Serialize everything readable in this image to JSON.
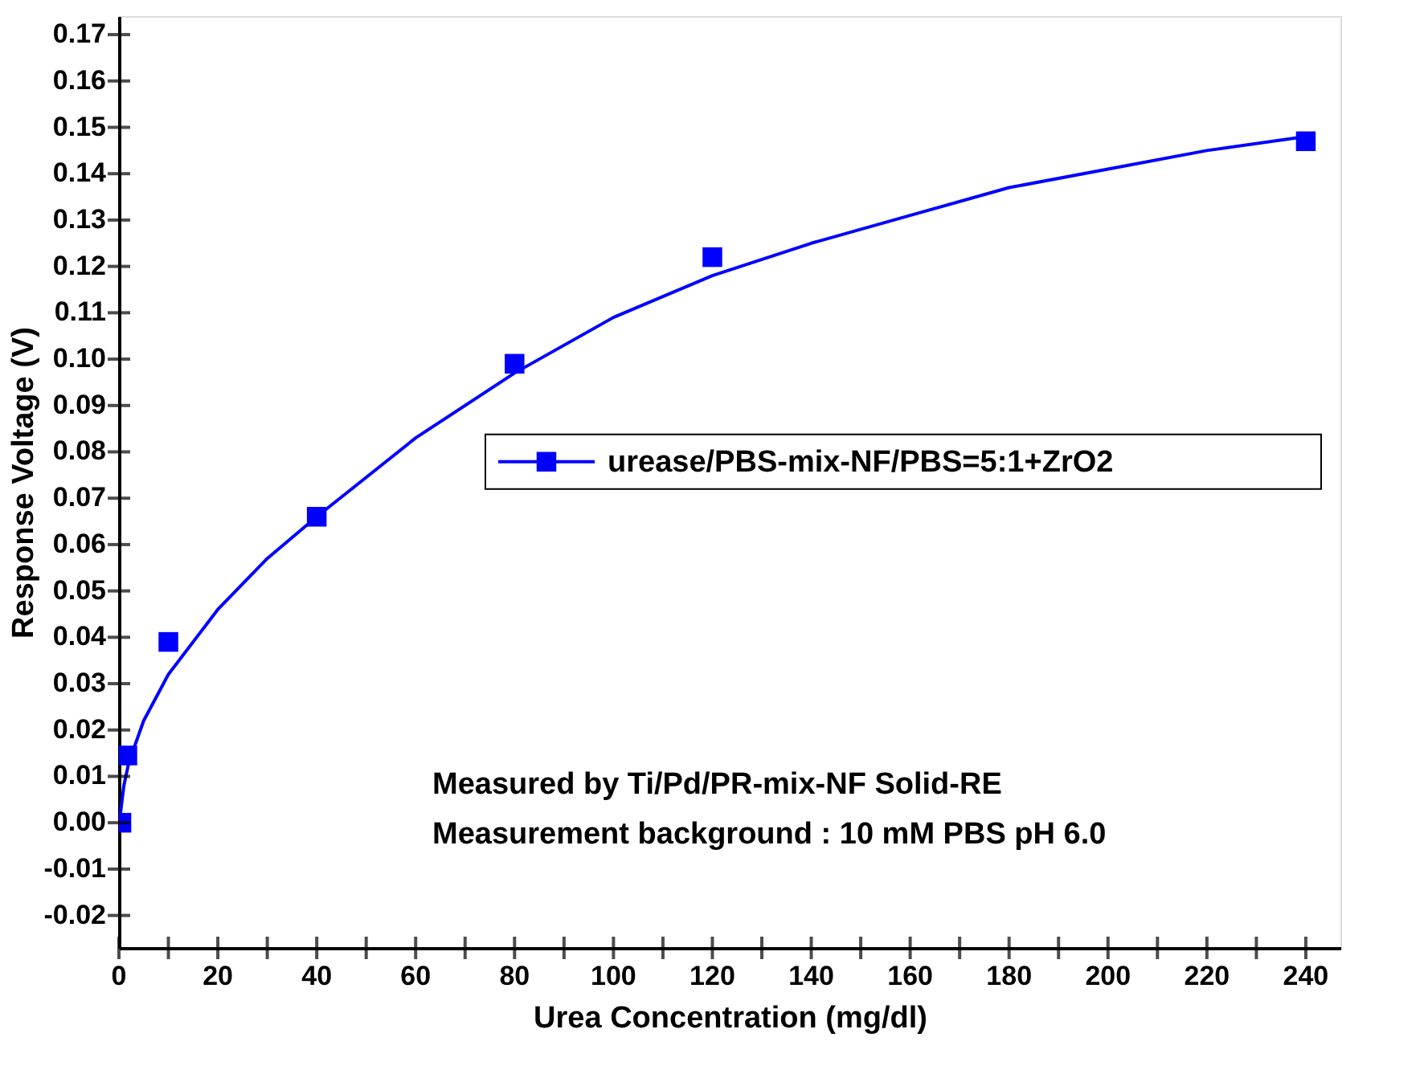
{
  "chart_data": {
    "type": "scatter",
    "xlabel": "Urea Concentration (mg/dl)",
    "ylabel": "Response Voltage (V)",
    "x": [
      0.5,
      1.7,
      10,
      40,
      80,
      120,
      240
    ],
    "series": [
      {
        "name": "urease/PBS-mix-NF/PBS=5:1+ZrO2",
        "marker": "square",
        "color": "#0000ff",
        "values": [
          0.0,
          0.0145,
          0.039,
          0.066,
          0.099,
          0.122,
          0.147
        ]
      },
      {
        "type": "line",
        "color": "#0000ff",
        "x": [
          0.3,
          1,
          2,
          5,
          10,
          20,
          30,
          40,
          60,
          80,
          100,
          120,
          140,
          160,
          180,
          200,
          220,
          240
        ],
        "values": [
          0.002,
          0.008,
          0.013,
          0.022,
          0.032,
          0.046,
          0.057,
          0.066,
          0.083,
          0.097,
          0.109,
          0.118,
          0.125,
          0.131,
          0.137,
          0.141,
          0.145,
          0.148
        ]
      }
    ],
    "xlim": [
      0,
      247
    ],
    "ylim": [
      -0.027,
      0.174
    ],
    "xticks": [
      0,
      {
        "value": 10,
        "label": null
      },
      20,
      {
        "value": 30,
        "label": null
      },
      40,
      {
        "value": 50,
        "label": null
      },
      60,
      {
        "value": 70,
        "label": null
      },
      80,
      {
        "value": 90,
        "label": null
      },
      100,
      {
        "value": 110,
        "label": null
      },
      120,
      {
        "value": 130,
        "label": null
      },
      140,
      {
        "value": 150,
        "label": null
      },
      160,
      {
        "value": 170,
        "label": null
      },
      180,
      {
        "value": 190,
        "label": null
      },
      200,
      {
        "value": 210,
        "label": null
      },
      220,
      {
        "value": 230,
        "label": null
      },
      240
    ],
    "yticks": [
      {
        "value": -0.02,
        "label": "-0.02"
      },
      {
        "value": -0.01,
        "label": "-0.01"
      },
      {
        "value": 0,
        "label": "0.00"
      },
      {
        "value": 0.01,
        "label": "0.01"
      },
      {
        "value": 0.02,
        "label": "0.02"
      },
      {
        "value": 0.03,
        "label": "0.03"
      },
      {
        "value": 0.04,
        "label": "0.04"
      },
      {
        "value": 0.05,
        "label": "0.05"
      },
      {
        "value": 0.06,
        "label": "0.06"
      },
      {
        "value": 0.07,
        "label": "0.07"
      },
      {
        "value": 0.08,
        "label": "0.08"
      },
      {
        "value": 0.09,
        "label": "0.09"
      },
      {
        "value": 0.1,
        "label": "0.10"
      },
      {
        "value": 0.11,
        "label": "0.11"
      },
      {
        "value": 0.12,
        "label": "0.12"
      },
      {
        "value": 0.13,
        "label": "0.13"
      },
      {
        "value": 0.14,
        "label": "0.14"
      },
      {
        "value": 0.15,
        "label": "0.15"
      },
      {
        "value": 0.16,
        "label": "0.16"
      },
      {
        "value": 0.17,
        "label": "0.17"
      }
    ],
    "annotations": [
      "Measured by Ti/Pd/PR-mix-NF Solid-RE",
      "Measurement background : 10 mM PBS pH 6.0"
    ],
    "legend": "right",
    "grid": false
  }
}
